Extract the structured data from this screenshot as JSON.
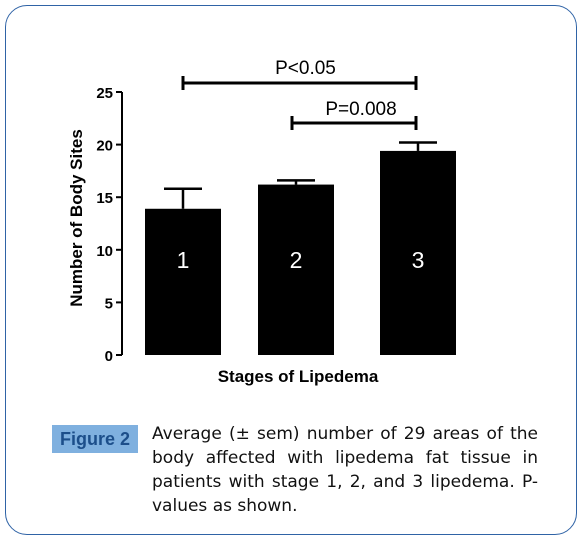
{
  "chart_data": {
    "type": "bar",
    "categories": [
      "1",
      "2",
      "3"
    ],
    "values": [
      13.9,
      16.2,
      19.4
    ],
    "errors": [
      1.9,
      0.4,
      0.8
    ],
    "xlabel": "Stages of Lipedema",
    "ylabel": "Number of Body Sites",
    "ylim": [
      0,
      25
    ],
    "yticks": [
      "0",
      "5",
      "10",
      "15",
      "20",
      "25"
    ],
    "annotations": [
      {
        "text": "P<0.05",
        "from": "1",
        "to": "3"
      },
      {
        "text": "P=0.008",
        "from": "2",
        "to": "3"
      }
    ],
    "colors": {
      "bar": "#000000",
      "bar_label": "#ffffff",
      "bracket": "#000000"
    },
    "grid": false
  },
  "figure": {
    "label": "Figure 2",
    "caption": "Average (± sem) number of 29 areas of the body affected with lipedema fat tissue in patients with stage 1, 2, and 3 lipedema. P-values as shown."
  },
  "colors": {
    "frame_border": "#2f63a6",
    "label_bg": "#7fb0df",
    "label_text": "#1c4e8a"
  }
}
